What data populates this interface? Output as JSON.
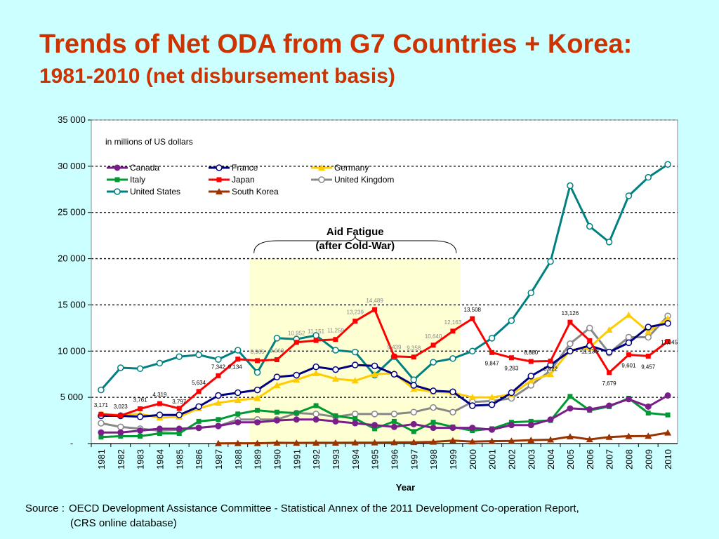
{
  "title": "Trends of Net ODA from G7 Countries + Korea:",
  "subtitle": "1981-2010 (net disbursement basis)",
  "source_label": "Source :",
  "source_line1": "OECD Development Assistance Committee - Statistical Annex of the 2011 Development Co-operation Report,",
  "source_line2": "(CRS online database)",
  "chart_data": {
    "type": "line",
    "unit_note": "in millions of US dollars",
    "xlabel": "Year",
    "ylabel": "",
    "ylim": [
      0,
      35000
    ],
    "yticks": [
      0,
      5000,
      10000,
      15000,
      20000,
      25000,
      30000,
      35000
    ],
    "ytick_labels": [
      "-",
      "5 000",
      "10 000",
      "15 000",
      "20 000",
      "25 000",
      "30 000",
      "35 000"
    ],
    "grid": "horizontal dashed",
    "legend_position": "top-left",
    "categories": [
      "1981",
      "1982",
      "1983",
      "1984",
      "1985",
      "1986",
      "1987",
      "1988",
      "1989",
      "1990",
      "1991",
      "1992",
      "1993",
      "1994",
      "1995",
      "1996",
      "1997",
      "1998",
      "1999",
      "2000",
      "2001",
      "2002",
      "2003",
      "2004",
      "2005",
      "2006",
      "2007",
      "2008",
      "2009",
      "2010"
    ],
    "highlight": {
      "from": "1989",
      "to": "1999",
      "label_line1": "Aid Fatigue",
      "label_line2": "(after Cold-War)"
    },
    "series": [
      {
        "name": "Canada",
        "color": "#7a1f8a",
        "marker": "circle-filled",
        "values": [
          1200,
          1200,
          1400,
          1600,
          1600,
          1700,
          1900,
          2300,
          2300,
          2500,
          2600,
          2600,
          2400,
          2200,
          2000,
          1800,
          2100,
          1700,
          1700,
          1700,
          1500,
          2000,
          2000,
          2600,
          3800,
          3700,
          4100,
          4800,
          4000,
          5200
        ]
      },
      {
        "name": "France",
        "color": "#000080",
        "marker": "circle-open",
        "values": [
          3000,
          3000,
          2900,
          3100,
          3100,
          4000,
          5200,
          5500,
          5800,
          7200,
          7400,
          8300,
          8000,
          8500,
          8400,
          7500,
          6300,
          5700,
          5600,
          4100,
          4200,
          5500,
          7300,
          8500,
          10000,
          10600,
          9900,
          10900,
          12600,
          13000
        ]
      },
      {
        "name": "Germany",
        "color": "#ffcc00",
        "marker": "triangle",
        "values": [
          3200,
          3100,
          3200,
          2800,
          2900,
          3800,
          4400,
          4700,
          4900,
          6300,
          6900,
          7600,
          7000,
          6800,
          7500,
          7600,
          5900,
          5600,
          5500,
          5000,
          5000,
          5300,
          6800,
          7500,
          10100,
          10400,
          12300,
          13900,
          12100,
          13500
        ]
      },
      {
        "name": "Italy",
        "color": "#009933",
        "marker": "square",
        "values": [
          700,
          800,
          800,
          1100,
          1100,
          2400,
          2600,
          3200,
          3600,
          3400,
          3300,
          4100,
          3000,
          2700,
          1600,
          2400,
          1300,
          2300,
          1800,
          1400,
          1600,
          2300,
          2400,
          2500,
          5100,
          3600,
          4000,
          4900,
          3300,
          3100
        ]
      },
      {
        "name": "Japan",
        "color": "#ff0000",
        "marker": "square",
        "values": [
          3171,
          3023,
          3761,
          4319,
          3797,
          5634,
          7342,
          9134,
          8965,
          9069,
          10952,
          11151,
          11259,
          13239,
          14489,
          9439,
          9358,
          10640,
          12163,
          13508,
          9847,
          9283,
          8880,
          8922,
          13126,
          11136,
          7679,
          9601,
          9457,
          11045
        ]
      },
      {
        "name": "United Kingdom",
        "color": "#888888",
        "marker": "circle-open",
        "values": [
          2200,
          1800,
          1600,
          1400,
          1500,
          1700,
          1900,
          2600,
          2600,
          2600,
          3300,
          3200,
          2900,
          3200,
          3200,
          3200,
          3400,
          3900,
          3400,
          4500,
          4600,
          4900,
          6300,
          7900,
          10800,
          12500,
          9800,
          11500,
          11500,
          13800
        ]
      },
      {
        "name": "United States",
        "color": "#008080",
        "marker": "circle-open",
        "values": [
          5800,
          8200,
          8100,
          8700,
          9400,
          9600,
          9100,
          10100,
          7700,
          11400,
          11300,
          11700,
          10100,
          9900,
          7400,
          9400,
          6900,
          8800,
          9200,
          10000,
          11400,
          13300,
          16300,
          19700,
          27900,
          23500,
          21800,
          26800,
          28800,
          30200
        ]
      },
      {
        "name": "South Korea",
        "color": "#993300",
        "marker": "triangle",
        "values": [
          null,
          null,
          null,
          null,
          null,
          null,
          20,
          30,
          30,
          80,
          70,
          80,
          80,
          100,
          100,
          120,
          140,
          180,
          320,
          210,
          260,
          280,
          370,
          420,
          750,
          450,
          700,
          800,
          820,
          1170
        ]
      }
    ],
    "japan_data_labels": [
      "3,171",
      "3,023",
      "3,761",
      "4,319",
      "3,797",
      "5,634",
      "7,342",
      "9,134",
      "8,965",
      "9,069",
      "10,952",
      "11,151",
      "11,259",
      "13,239",
      "14,489",
      "9,439",
      "9,358",
      "10,640",
      "12,163",
      "13,508",
      "9,847",
      "9,283",
      "8,880",
      "8,922",
      "13,126",
      "11,136",
      "7,679",
      "9,601",
      "9,457",
      "11,045"
    ]
  }
}
